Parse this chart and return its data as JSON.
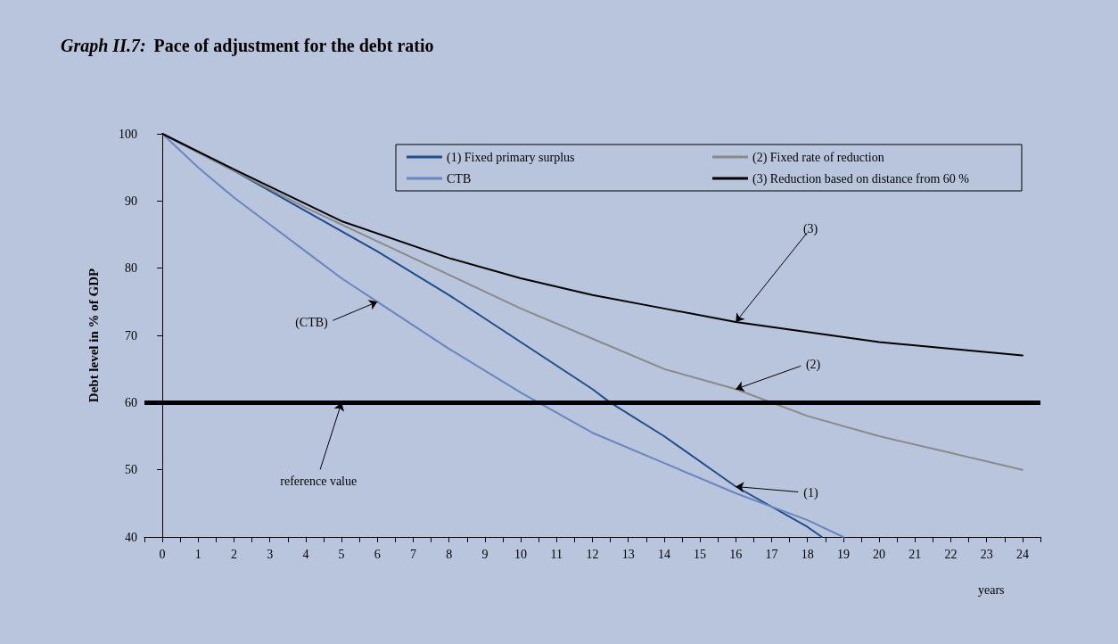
{
  "chart_data": {
    "type": "line",
    "title": "Graph II.7: Pace of adjustment for the debt ratio",
    "ylabel": "Debt level in % of GDP",
    "xlabel": "years",
    "xlim": [
      -0.5,
      24.5
    ],
    "xticks": [
      {
        "value": -0.5,
        "label": null
      },
      0,
      {
        "value": 0.5,
        "label": null
      },
      1,
      {
        "value": 1.5,
        "label": null
      },
      2,
      {
        "value": 2.5,
        "label": null
      },
      3,
      {
        "value": 3.5,
        "label": null
      },
      4,
      {
        "value": 4.5,
        "label": null
      },
      5,
      {
        "value": 5.5,
        "label": null
      },
      6,
      {
        "value": 6.5,
        "label": null
      },
      7,
      {
        "value": 7.5,
        "label": null
      },
      8,
      {
        "value": 8.5,
        "label": null
      },
      9,
      {
        "value": 9.5,
        "label": null
      },
      10,
      {
        "value": 10.5,
        "label": null
      },
      11,
      {
        "value": 11.5,
        "label": null
      },
      12,
      {
        "value": 12.5,
        "label": null
      },
      13,
      {
        "value": 13.5,
        "label": null
      },
      14,
      {
        "value": 14.5,
        "label": null
      },
      15,
      {
        "value": 15.5,
        "label": null
      },
      16,
      {
        "value": 16.5,
        "label": null
      },
      17,
      {
        "value": 17.5,
        "label": null
      },
      18,
      {
        "value": 18.5,
        "label": null
      },
      19,
      {
        "value": 19.5,
        "label": null
      },
      20,
      {
        "value": 20.5,
        "label": null
      },
      21,
      {
        "value": 21.5,
        "label": null
      },
      22,
      {
        "value": 22.5,
        "label": null
      },
      23,
      {
        "value": 23.5,
        "label": null
      },
      24,
      {
        "value": 24.5,
        "label": null
      }
    ],
    "ylim": [
      40,
      100
    ],
    "yticks": [
      40,
      50,
      60,
      70,
      80,
      90,
      100
    ],
    "grid": false,
    "legend": "top right",
    "marker": "none",
    "line_style": "solid",
    "series": [
      {
        "name": "(1) Fixed primary surplus",
        "color": "#1f4e8c",
        "x": [
          0,
          2,
          4,
          6,
          8,
          10,
          12,
          12.5,
          14,
          16,
          18,
          18.4
        ],
        "values": [
          100,
          94.5,
          88.5,
          82.5,
          76,
          69,
          62,
          60,
          55,
          47.5,
          41.5,
          40
        ]
      },
      {
        "name": "(2) Fixed rate of reduction",
        "color": "#8a8a8a",
        "x": [
          0,
          2,
          4,
          6,
          8,
          10,
          12,
          14,
          16,
          18,
          20,
          22,
          24
        ],
        "values": [
          100,
          94.5,
          89,
          84,
          79,
          74,
          69.5,
          65,
          62,
          58,
          55,
          52.5,
          50
        ]
      },
      {
        "name": "CTB",
        "color": "#6a86bf",
        "x": [
          0,
          1,
          2,
          3,
          4,
          5,
          6,
          8,
          10,
          10.5,
          12,
          14,
          16,
          18,
          19
        ],
        "values": [
          100,
          95,
          90.5,
          86.5,
          82.5,
          78.5,
          75,
          68,
          61.5,
          60,
          55.5,
          51,
          46.5,
          42.5,
          40
        ]
      },
      {
        "name": "(3) Reduction based on distance from 60 %",
        "color": "#000000",
        "x": [
          0,
          2,
          5,
          8,
          10,
          12,
          14,
          16,
          18,
          20,
          22,
          24
        ],
        "values": [
          100,
          94.7,
          87,
          81.5,
          78.5,
          76,
          74,
          72,
          70.5,
          69,
          68,
          67
        ]
      }
    ],
    "ref_lines": [
      {
        "axis": "y",
        "value": 60,
        "color": "#000000"
      }
    ],
    "annotations": [
      {
        "text": "(CTB)",
        "x": 6,
        "y": 75
      },
      {
        "text": "(3)",
        "x": 16,
        "y": 72
      },
      {
        "text": "(2)",
        "x": 16,
        "y": 62
      },
      {
        "text": "(1)",
        "x": 16,
        "y": 47.5
      },
      {
        "text": "reference value",
        "x": 5,
        "y": 60
      }
    ]
  }
}
